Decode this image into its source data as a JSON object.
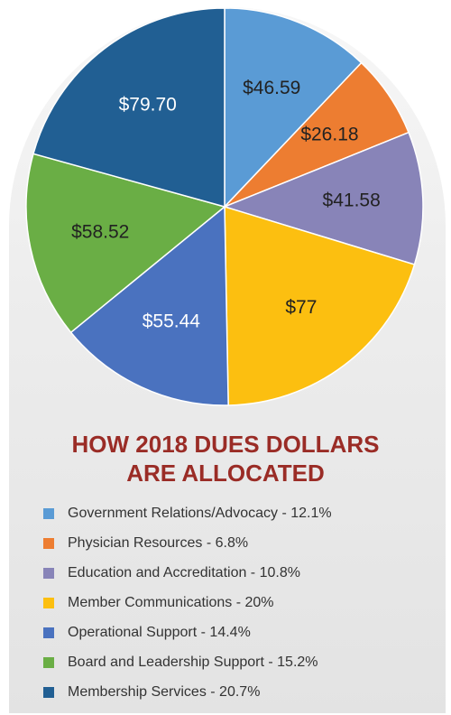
{
  "chart_data": {
    "type": "pie",
    "title_lines": [
      "HOW 2018 DUES DOLLARS",
      "ARE ALLOCATED"
    ],
    "legend_position": "bottom",
    "slices": [
      {
        "name": "Government Relations/Advocacy",
        "value": 46.59,
        "label": "$46.59",
        "legend": "Government Relations/Advocacy - 12.1%",
        "color": "#5a9bd5",
        "text_color": "#222222"
      },
      {
        "name": "Physician Resources",
        "value": 26.18,
        "label": "$26.18",
        "legend": "Physician Resources - 6.8%",
        "color": "#ed7d31",
        "text_color": "#222222"
      },
      {
        "name": "Education and Accreditation",
        "value": 41.58,
        "label": "$41.58",
        "legend": "Education and Accreditation - 10.8%",
        "color": "#8884b8",
        "text_color": "#222222"
      },
      {
        "name": "Member Communications",
        "value": 77,
        "label": "$77",
        "legend": "Member Communications - 20%",
        "color": "#fcbf10",
        "text_color": "#222222"
      },
      {
        "name": "Operational Support",
        "value": 55.44,
        "label": "$55.44",
        "legend": "Operational Support - 14.4%",
        "color": "#4a72bf",
        "text_color": "#ffffff"
      },
      {
        "name": "Board and Leadership Support",
        "value": 58.52,
        "label": "$58.52",
        "legend": "Board and Leadership Support - 15.2%",
        "color": "#6aae45",
        "text_color": "#222222"
      },
      {
        "name": "Membership Services",
        "value": 79.7,
        "label": "$79.70",
        "legend": "Membership Services - 20.7%",
        "color": "#215f93",
        "text_color": "#ffffff"
      }
    ]
  }
}
